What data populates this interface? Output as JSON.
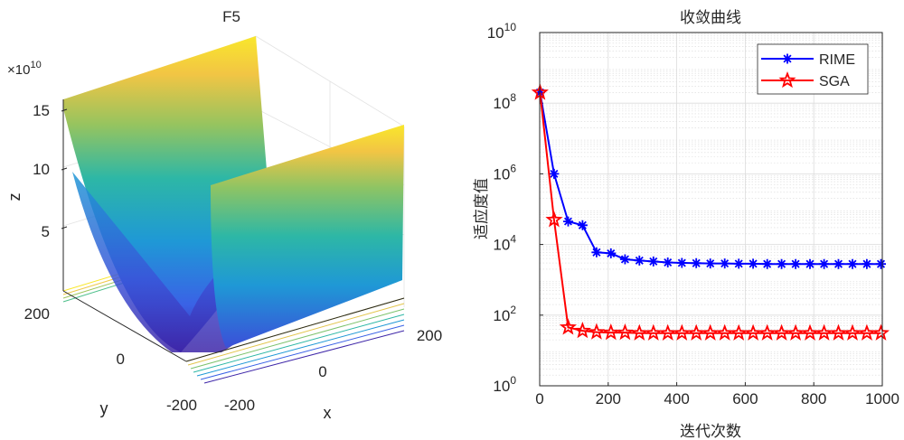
{
  "chart_data": [
    {
      "type": "surface",
      "title": "F5",
      "xlabel": "x",
      "ylabel": "y",
      "zlabel": "z",
      "z_multiplier_label": "×10",
      "z_multiplier_exp": "10",
      "x_ticks": [
        "-200",
        "0",
        "200"
      ],
      "y_ticks": [
        "200",
        "0",
        "-200"
      ],
      "z_ticks": [
        "15",
        "10",
        "5"
      ],
      "xlim": [
        -200,
        200
      ],
      "ylim": [
        -200,
        200
      ],
      "zlim": [
        0,
        160000000000.0
      ],
      "colormap": [
        "#3e26a8",
        "#1f8ed8",
        "#2bb0b3",
        "#6cc16a",
        "#cfbc4a",
        "#f9e72b"
      ],
      "contour_projection": true
    },
    {
      "type": "line",
      "title": "收敛曲线",
      "xlabel": "迭代次数",
      "ylabel": "适应度值",
      "xlim": [
        0,
        1000
      ],
      "x_ticks": [
        "0",
        "200",
        "400",
        "600",
        "800",
        "1000"
      ],
      "y_scale": "log",
      "ylim_exp": [
        0,
        10
      ],
      "y_tick_base": "10",
      "y_tick_exps": [
        "0",
        "2",
        "4",
        "6",
        "8",
        "10"
      ],
      "grid": true,
      "legend_position": "top-right",
      "x": [
        1,
        42,
        83,
        125,
        166,
        208,
        249,
        291,
        332,
        374,
        415,
        457,
        498,
        540,
        581,
        623,
        664,
        706,
        747,
        789,
        830,
        872,
        913,
        955,
        996
      ],
      "series": [
        {
          "name": "RIME",
          "color": "#0000ff",
          "marker": "asterisk",
          "values": [
            200000000.0,
            1000000.0,
            45000,
            35000,
            6000,
            5600,
            3800,
            3500,
            3300,
            3100,
            3000,
            2950,
            2900,
            2900,
            2850,
            2850,
            2800,
            2800,
            2800,
            2800,
            2800,
            2800,
            2800,
            2800,
            2800
          ]
        },
        {
          "name": "SGA",
          "color": "#ff0000",
          "marker": "star",
          "values": [
            200000000.0,
            50000,
            45,
            36,
            33,
            32,
            32,
            31,
            31,
            31,
            31,
            31,
            31,
            31,
            31,
            31,
            31,
            31,
            31,
            31,
            31,
            31,
            31,
            31,
            31
          ]
        }
      ]
    }
  ]
}
